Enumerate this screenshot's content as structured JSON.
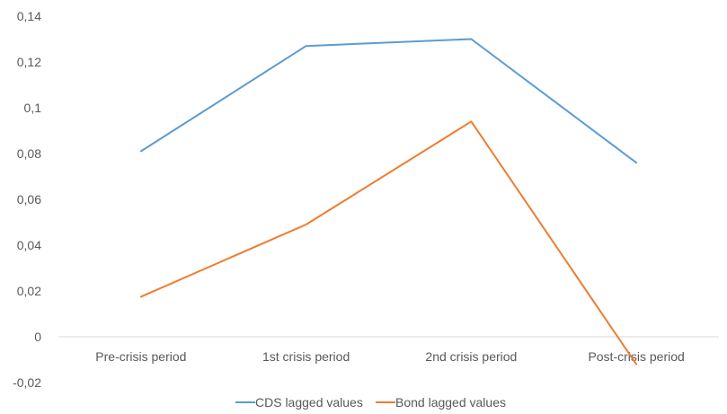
{
  "chart_data": {
    "type": "line",
    "title": "",
    "xlabel": "",
    "ylabel": "",
    "categories": [
      "Pre-crisis period",
      "1st  crisis period",
      "2nd crisis period",
      "Post-crisis period"
    ],
    "y_ticks": [
      "-0,02",
      "0",
      "0,02",
      "0,04",
      "0,06",
      "0,08",
      "0,1",
      "0,12",
      "0,14"
    ],
    "ylim": [
      -0.02,
      0.14
    ],
    "grid": false,
    "legend_position": "bottom",
    "series": [
      {
        "name": "CDS lagged values",
        "color": "#5B9BD5",
        "values": [
          0.081,
          0.127,
          0.13,
          0.076
        ]
      },
      {
        "name": "Bond lagged values",
        "color": "#ED7D31",
        "values": [
          0.0175,
          0.049,
          0.094,
          -0.012
        ]
      }
    ]
  }
}
